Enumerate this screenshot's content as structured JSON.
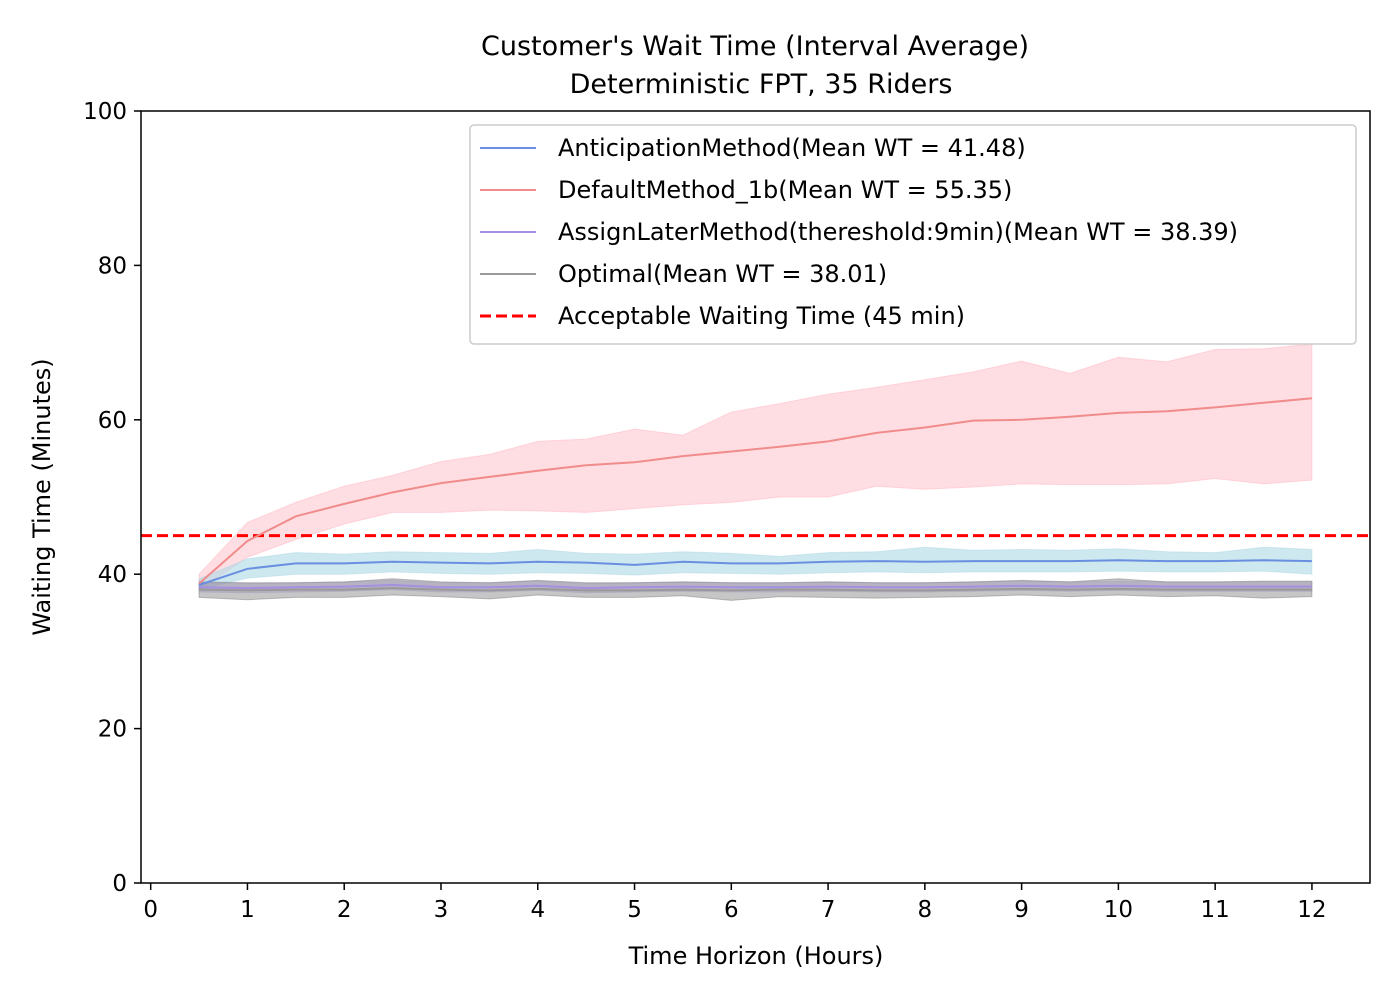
{
  "colors": {
    "anticipation": "#6a8fe0",
    "anticipation_band": "#add8e6",
    "default": "#f08c8c",
    "default_band": "#ffb6c1",
    "assign_later": "#a48fe0",
    "assign_later_band": "#c8b8f0",
    "optimal": "#999999",
    "optimal_band": "#808080",
    "threshold": "#ff0000"
  },
  "chart_data": {
    "type": "line",
    "title": "Customer's Wait Time (Interval Average)",
    "subtitle": "Deterministic FPT, 35 Riders",
    "xlabel": "Time Horizon (Hours)",
    "ylabel": "Waiting Time (Minutes)",
    "xlim": [
      -0.1,
      12.6
    ],
    "ylim": [
      0,
      100
    ],
    "xticks": [
      "0",
      "1",
      "2",
      "3",
      "4",
      "5",
      "6",
      "7",
      "8",
      "9",
      "10",
      "11",
      "12"
    ],
    "yticks": [
      "0",
      "20",
      "40",
      "60",
      "80",
      "100"
    ],
    "grid": false,
    "legend_position": "upper right",
    "x": [
      0.5,
      1,
      1.5,
      2,
      2.5,
      3,
      3.5,
      4,
      4.5,
      5,
      5.5,
      6,
      6.5,
      7,
      7.5,
      8,
      8.5,
      9,
      9.5,
      10,
      10.5,
      11,
      11.5,
      12
    ],
    "series": [
      {
        "key": "default",
        "name": "DefaultMethod_1b(Mean WT = 55.35)",
        "values": [
          38.8,
          44.3,
          47.5,
          49.1,
          50.6,
          51.8,
          52.6,
          53.4,
          54.1,
          54.5,
          55.3,
          55.9,
          56.5,
          57.2,
          58.3,
          59.0,
          59.9,
          60.0,
          60.4,
          60.9,
          61.1,
          61.6,
          62.2,
          62.8
        ],
        "lower": [
          38.0,
          42.2,
          44.5,
          46.5,
          48.0,
          48.0,
          48.3,
          48.2,
          48.0,
          48.5,
          49.0,
          49.3,
          50.0,
          50.0,
          51.4,
          51.0,
          51.3,
          51.7,
          51.6,
          51.6,
          51.7,
          52.4,
          51.7,
          52.2
        ],
        "upper": [
          40.0,
          46.7,
          49.3,
          51.4,
          52.8,
          54.6,
          55.5,
          57.2,
          57.5,
          58.8,
          58.0,
          61.0,
          62.1,
          63.3,
          64.2,
          65.2,
          66.2,
          67.6,
          66.0,
          68.1,
          67.5,
          69.1,
          69.2,
          69.8
        ]
      },
      {
        "key": "anticipation",
        "name": "AnticipationMethod(Mean WT = 41.48)",
        "values": [
          38.6,
          40.7,
          41.4,
          41.4,
          41.6,
          41.5,
          41.4,
          41.6,
          41.5,
          41.2,
          41.6,
          41.4,
          41.4,
          41.6,
          41.7,
          41.6,
          41.7,
          41.7,
          41.7,
          41.8,
          41.7,
          41.7,
          41.8,
          41.7
        ],
        "lower": [
          38.0,
          39.5,
          40.0,
          40.0,
          40.3,
          40.1,
          40.0,
          40.2,
          40.1,
          39.9,
          40.2,
          40.1,
          40.0,
          40.2,
          40.3,
          40.2,
          40.3,
          40.3,
          40.3,
          40.4,
          40.3,
          40.3,
          40.4,
          40.0
        ],
        "upper": [
          39.4,
          42.0,
          42.8,
          42.6,
          42.9,
          42.8,
          42.7,
          43.2,
          42.7,
          42.6,
          42.9,
          42.7,
          42.3,
          42.8,
          42.9,
          43.5,
          43.1,
          43.2,
          43.1,
          43.3,
          42.9,
          42.8,
          43.5,
          43.2
        ]
      },
      {
        "key": "assign_later",
        "name": "AssignLaterMethod(thereshold:9min)(Mean WT = 38.39)",
        "values": [
          38.3,
          38.2,
          38.3,
          38.4,
          38.6,
          38.3,
          38.3,
          38.5,
          38.2,
          38.3,
          38.4,
          38.3,
          38.3,
          38.4,
          38.3,
          38.3,
          38.4,
          38.5,
          38.4,
          38.5,
          38.4,
          38.4,
          38.4,
          38.4
        ],
        "lower": [
          37.7,
          37.6,
          37.7,
          37.8,
          38.0,
          37.7,
          37.7,
          37.9,
          37.6,
          37.7,
          37.8,
          37.7,
          37.7,
          37.8,
          37.7,
          37.7,
          37.8,
          37.9,
          37.8,
          37.9,
          37.8,
          37.8,
          37.8,
          37.8
        ],
        "upper": [
          38.9,
          38.8,
          38.9,
          39.0,
          39.2,
          38.9,
          38.9,
          39.1,
          38.8,
          38.9,
          39.0,
          38.9,
          38.9,
          39.0,
          38.9,
          38.9,
          39.0,
          39.1,
          39.0,
          39.1,
          39.0,
          39.0,
          39.0,
          39.0
        ]
      },
      {
        "key": "optimal",
        "name": "Optimal(Mean WT = 38.01)",
        "values": [
          38.0,
          37.9,
          38.0,
          38.0,
          38.2,
          38.0,
          37.9,
          38.1,
          37.9,
          37.9,
          38.0,
          37.9,
          38.0,
          38.0,
          37.9,
          37.9,
          38.0,
          38.1,
          38.0,
          38.1,
          38.0,
          38.0,
          38.0,
          38.0
        ],
        "lower": [
          37.0,
          36.7,
          37.0,
          37.0,
          37.3,
          37.1,
          36.8,
          37.3,
          37.0,
          37.0,
          37.2,
          36.6,
          37.1,
          37.0,
          36.9,
          37.0,
          37.1,
          37.3,
          37.1,
          37.3,
          37.1,
          37.2,
          36.9,
          37.1
        ],
        "upper": [
          39.0,
          38.9,
          38.9,
          39.0,
          39.4,
          39.0,
          38.9,
          39.2,
          38.9,
          38.9,
          39.0,
          38.9,
          38.9,
          39.0,
          38.9,
          38.9,
          39.0,
          39.2,
          39.0,
          39.4,
          39.0,
          39.0,
          39.1,
          39.1
        ]
      }
    ],
    "threshold": {
      "key": "threshold",
      "name": "Acceptable Waiting Time (45 min)",
      "y": 45
    },
    "legend_order": [
      "anticipation",
      "default",
      "assign_later",
      "optimal",
      "threshold"
    ]
  }
}
